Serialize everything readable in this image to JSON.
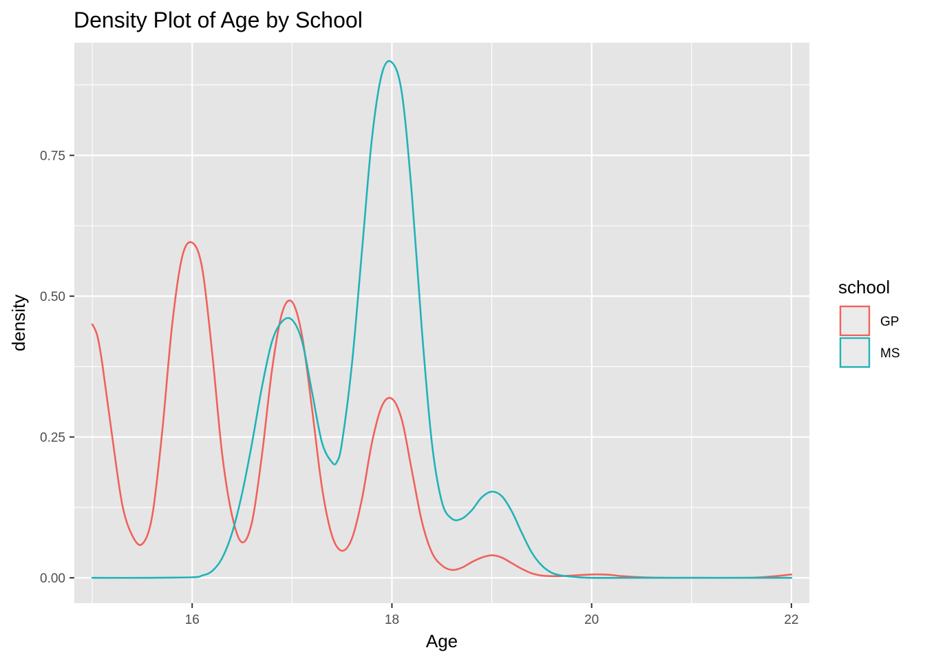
{
  "chart_data": {
    "type": "line",
    "title": "Density Plot of Age by School",
    "xlabel": "Age",
    "ylabel": "density",
    "xlim": [
      14.82,
      22.18
    ],
    "ylim": [
      -0.045,
      0.95
    ],
    "x_ticks": [
      16,
      18,
      20,
      22
    ],
    "x_tick_labels": [
      "16",
      "18",
      "20",
      "22"
    ],
    "y_ticks": [
      0,
      0.25,
      0.5,
      0.75
    ],
    "y_tick_labels": [
      "0.00",
      "0.25",
      "0.50",
      "0.75"
    ],
    "grid": true,
    "background": "#e5e5e5",
    "grid_color": "#ffffff",
    "legend": {
      "title": "school",
      "position": "right",
      "entries": [
        {
          "label": "GP",
          "color": "#f0615b"
        },
        {
          "label": "MS",
          "color": "#1fb3b8"
        }
      ]
    },
    "series": [
      {
        "name": "GP",
        "color": "#f0615b",
        "x": [
          15.0,
          15.05,
          15.1,
          15.2,
          15.3,
          15.4,
          15.5,
          15.6,
          15.7,
          15.8,
          15.9,
          16.0,
          16.1,
          16.2,
          16.3,
          16.4,
          16.5,
          16.6,
          16.7,
          16.8,
          16.9,
          17.0,
          17.1,
          17.2,
          17.3,
          17.4,
          17.5,
          17.6,
          17.7,
          17.8,
          17.9,
          18.0,
          18.1,
          18.2,
          18.3,
          18.4,
          18.5,
          18.6,
          18.7,
          18.8,
          18.9,
          19.0,
          19.1,
          19.2,
          19.3,
          19.4,
          19.5,
          19.6,
          19.7,
          19.8,
          19.9,
          20.0,
          20.1,
          20.2,
          20.3,
          20.5,
          20.8,
          21.0,
          21.5,
          21.7,
          21.85,
          22.0
        ],
        "y": [
          0.45,
          0.43,
          0.38,
          0.25,
          0.13,
          0.075,
          0.06,
          0.11,
          0.26,
          0.45,
          0.57,
          0.595,
          0.55,
          0.4,
          0.22,
          0.11,
          0.063,
          0.1,
          0.22,
          0.37,
          0.47,
          0.49,
          0.43,
          0.3,
          0.16,
          0.075,
          0.048,
          0.07,
          0.14,
          0.24,
          0.305,
          0.318,
          0.28,
          0.19,
          0.1,
          0.045,
          0.022,
          0.014,
          0.018,
          0.028,
          0.036,
          0.04,
          0.036,
          0.026,
          0.016,
          0.008,
          0.004,
          0.003,
          0.003,
          0.004,
          0.005,
          0.006,
          0.006,
          0.005,
          0.003,
          0.001,
          0.0,
          0.0,
          0.0,
          0.001,
          0.003,
          0.006
        ]
      },
      {
        "name": "MS",
        "color": "#1fb3b8",
        "x": [
          15.0,
          15.5,
          16.0,
          16.1,
          16.2,
          16.3,
          16.4,
          16.5,
          16.6,
          16.7,
          16.8,
          16.9,
          17.0,
          17.1,
          17.2,
          17.3,
          17.4,
          17.45,
          17.5,
          17.6,
          17.7,
          17.8,
          17.9,
          18.0,
          18.1,
          18.2,
          18.3,
          18.4,
          18.5,
          18.6,
          18.7,
          18.8,
          18.9,
          19.0,
          19.1,
          19.2,
          19.3,
          19.4,
          19.5,
          19.6,
          19.7,
          19.8,
          20.0,
          20.5,
          21.0,
          22.0
        ],
        "y": [
          0.0,
          0.0,
          0.001,
          0.004,
          0.012,
          0.035,
          0.08,
          0.15,
          0.24,
          0.34,
          0.42,
          0.455,
          0.458,
          0.42,
          0.33,
          0.24,
          0.205,
          0.206,
          0.24,
          0.38,
          0.58,
          0.78,
          0.895,
          0.915,
          0.86,
          0.68,
          0.44,
          0.24,
          0.135,
          0.105,
          0.105,
          0.12,
          0.143,
          0.153,
          0.145,
          0.118,
          0.08,
          0.045,
          0.022,
          0.009,
          0.004,
          0.002,
          0.0,
          0.0,
          0.0,
          0.0
        ]
      }
    ]
  }
}
